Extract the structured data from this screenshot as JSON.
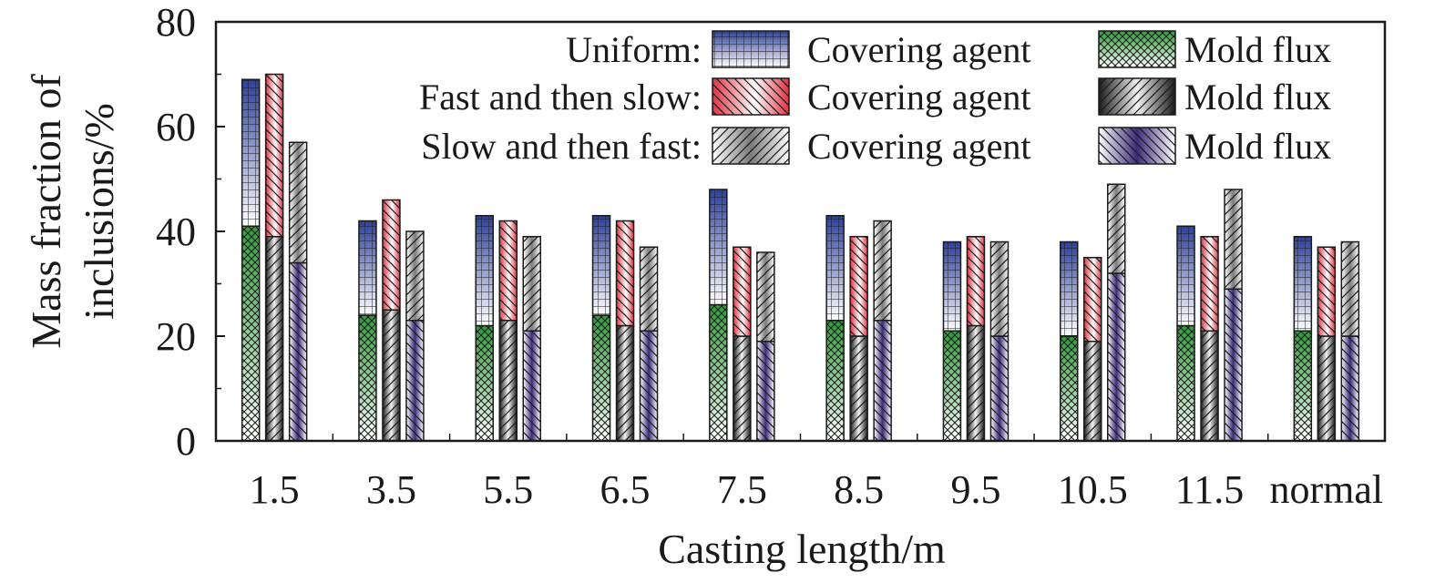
{
  "chart_data": {
    "type": "bar",
    "stacked": true,
    "grouped": true,
    "xlabel": "Casting length/m",
    "ylabel_line1": "Mass fraction of",
    "ylabel_line2": "inclusions/%",
    "ylim": [
      0,
      80
    ],
    "yticks": [
      "0",
      "20",
      "40",
      "60",
      "80"
    ],
    "grid": false,
    "legend_position": "top-right",
    "categories": [
      "1.5",
      "3.5",
      "5.5",
      "6.5",
      "7.5",
      "8.5",
      "9.5",
      "10.5",
      "11.5",
      "normal"
    ],
    "groups": [
      {
        "name": "Uniform:",
        "mold_flux_label": "Mold flux",
        "covering_agent_label": "Covering agent",
        "mold_flux": [
          41,
          24,
          22,
          24,
          26,
          23,
          21,
          20,
          22,
          21
        ],
        "total": [
          69,
          42,
          43,
          43,
          48,
          43,
          38,
          38,
          41,
          39
        ],
        "colors": {
          "covering": "#2b3f9e",
          "mold": "#2e9a3a"
        }
      },
      {
        "name": "Fast and then slow:",
        "mold_flux_label": "Mold flux",
        "covering_agent_label": "Covering agent",
        "mold_flux": [
          39,
          25,
          23,
          22,
          20,
          20,
          22,
          19,
          21,
          20
        ],
        "total": [
          70,
          46,
          42,
          42,
          37,
          39,
          39,
          35,
          39,
          37
        ],
        "colors": {
          "covering": "#e03040",
          "mold": "#1a1a1a"
        }
      },
      {
        "name": "Slow and then fast:",
        "mold_flux_label": "Mold flux",
        "covering_agent_label": "Covering agent",
        "mold_flux": [
          34,
          23,
          21,
          21,
          19,
          23,
          20,
          32,
          29,
          20
        ],
        "total": [
          57,
          40,
          39,
          37,
          36,
          42,
          38,
          49,
          48,
          38
        ],
        "colors": {
          "covering": "#555555",
          "mold": "#3a2a7a"
        }
      }
    ]
  }
}
